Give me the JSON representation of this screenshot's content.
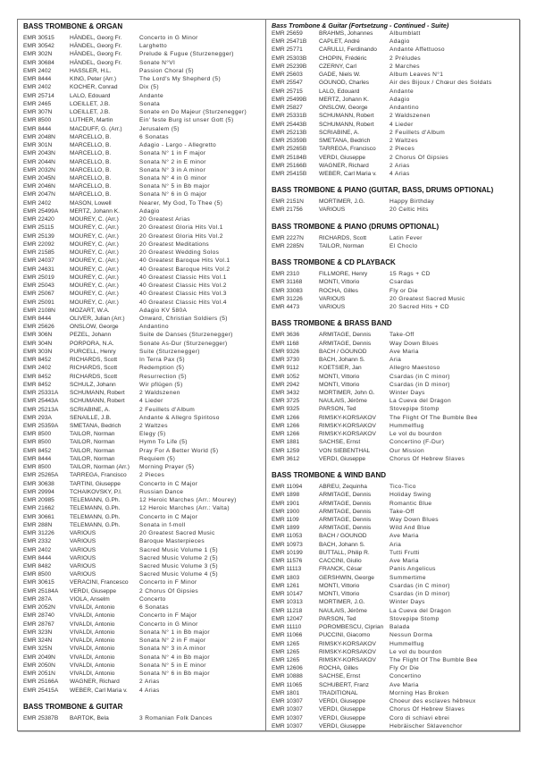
{
  "left": {
    "sections": [
      {
        "title": "BASS TROMBONE & ORGAN",
        "rows": [
          [
            "EMR 30515",
            "HÄNDEL, Georg Fr.",
            "Concerto in G Minor"
          ],
          [
            "EMR 30542",
            "HÄNDEL, Georg Fr.",
            "Larghetto"
          ],
          [
            "EMR 302N",
            "HÄNDEL, Georg Fr.",
            "Prelude & Fugue (Sturzenegger)"
          ],
          [
            "EMR 30684",
            "HÄNDEL, Georg Fr.",
            "Sonate N°VI"
          ],
          [
            "EMR 2402",
            "HASSLER, H.L.",
            "Passion Choral (5)"
          ],
          [
            "EMR 8444",
            "KING, Peter (Arr.)",
            "The Lord's My Shepherd (5)"
          ],
          [
            "EMR 2402",
            "KOCHER, Conrad",
            "Dix (5)"
          ],
          [
            "EMR 25714",
            "LALO, Edouard",
            "Andante"
          ],
          [
            "EMR 2465",
            "LOEILLET, J.B.",
            "Sonata"
          ],
          [
            "EMR 307N",
            "LOEILLET, J.B.",
            "Sonate en Do Majeur (Sturzenegger)"
          ],
          [
            "EMR 8500",
            "LUTHER, Martin",
            "Ein' feste Burg ist unser Gott (5)"
          ],
          [
            "EMR 8444",
            "MACDUFF, G. (Arr.)",
            "Jerusalem (5)"
          ],
          [
            "EMR 2048N",
            "MARCELLO, B.",
            "6 Sonatas"
          ],
          [
            "EMR 301N",
            "MARCELLO, B.",
            "Adagio - Largo - Allegretto"
          ],
          [
            "EMR 2043N",
            "MARCELLO, B.",
            "Sonata N° 1 in F major"
          ],
          [
            "EMR 2044N",
            "MARCELLO, B.",
            "Sonata N° 2 in E minor"
          ],
          [
            "EMR 2032N",
            "MARCELLO, B.",
            "Sonata N° 3 in A minor"
          ],
          [
            "EMR 2045N",
            "MARCELLO, B.",
            "Sonata N° 4 in G minor"
          ],
          [
            "EMR 2046N",
            "MARCELLO, B.",
            "Sonata N° 5 in Bb major"
          ],
          [
            "EMR 2047N",
            "MARCELLO, B.",
            "Sonata N° 6 in G major"
          ],
          [
            "EMR 2402",
            "MASON, Lowell",
            "Nearer, My God, To Thee (5)"
          ],
          [
            "EMR 25499A",
            "MERTZ, Johann K.",
            "Adagio"
          ],
          [
            "EMR 22420",
            "MOUREY, C. (Arr.)",
            "20 Greatest Arias"
          ],
          [
            "EMR 25115",
            "MOUREY, C. (Arr.)",
            "20 Greatest Gloria Hits Vol.1"
          ],
          [
            "EMR 25139",
            "MOUREY, C. (Arr.)",
            "20 Greatest Gloria Hits Vol.2"
          ],
          [
            "EMR 22092",
            "MOUREY, C. (Arr.)",
            "20 Greatest Meditations"
          ],
          [
            "EMR 21585",
            "MOUREY, C. (Arr.)",
            "20 Greatest Wedding Solos"
          ],
          [
            "EMR 24037",
            "MOUREY, C. (Arr.)",
            "40 Greatest Baroque Hits Vol.1"
          ],
          [
            "EMR 24631",
            "MOUREY, C. (Arr.)",
            "40 Greatest Baroque Hits Vol.2"
          ],
          [
            "EMR 25019",
            "MOUREY, C. (Arr.)",
            "40 Greatest Classic Hits Vol.1"
          ],
          [
            "EMR 25043",
            "MOUREY, C. (Arr.)",
            "40 Greatest Classic Hits Vol.2"
          ],
          [
            "EMR 25067",
            "MOUREY, C. (Arr.)",
            "40 Greatest Classic Hits Vol.3"
          ],
          [
            "EMR 25091",
            "MOUREY, C. (Arr.)",
            "40 Greatest Classic Hits Vol.4"
          ],
          [
            "EMR 2108N",
            "MOZART, W.A.",
            "Adagio KV 580A"
          ],
          [
            "EMR 8444",
            "OLIVER, Julian (Arr.)",
            "Onward, Christian Soldiers (5)"
          ],
          [
            "EMR 25626",
            "ONSLOW, George",
            "Andantino"
          ],
          [
            "EMR 306N",
            "PEZEL, Johann",
            "Suite de Danses (Sturzenegger)"
          ],
          [
            "EMR 304N",
            "PORPORA, N.A.",
            "Sonate As-Dur (Sturzenegger)"
          ],
          [
            "EMR 303N",
            "PURCELL, Henry",
            "Suite (Sturzenegger)"
          ],
          [
            "EMR 8452",
            "RICHARDS, Scott",
            "In Terra Pax (5)"
          ],
          [
            "EMR 2402",
            "RICHARDS, Scott",
            "Redemption (5)"
          ],
          [
            "EMR 8452",
            "RICHARDS, Scott",
            "Resurrection (5)"
          ],
          [
            "EMR 8452",
            "SCHULZ, Johann",
            "Wir pflügen (5)"
          ],
          [
            "EMR 25331A",
            "SCHUMANN, Robert",
            "2 Waldszenen"
          ],
          [
            "EMR 25443A",
            "SCHUMANN, Robert",
            "4 Lieder"
          ],
          [
            "EMR 25213A",
            "SCRIABINE, A.",
            "2 Feuillets d'Album"
          ],
          [
            "EMR 293A",
            "SENAILLE, J.B.",
            "Andante & Allegro Spiritoso"
          ],
          [
            "EMR 25359A",
            "SMETANA, Bedrich",
            "2 Waltzes"
          ],
          [
            "EMR 8500",
            "TAILOR, Norman",
            "Elegy (5)"
          ],
          [
            "EMR 8500",
            "TAILOR, Norman",
            "Hymn To Life (5)"
          ],
          [
            "EMR 8452",
            "TAILOR, Norman",
            "Pray For A Better World (5)"
          ],
          [
            "EMR 8444",
            "TAILOR, Norman",
            "Requiem (5)"
          ],
          [
            "EMR 8500",
            "TAILOR, Norman (Arr.)",
            "Morning Prayer (5)"
          ],
          [
            "EMR 25265A",
            "TARREGA, Francisco",
            "2 Pieces"
          ],
          [
            "EMR 30638",
            "TARTINI, Giuseppe",
            "Concerto in C Major"
          ],
          [
            "EMR 29994",
            "TCHAIKOVSKY, P.I.",
            "Russian Dance"
          ],
          [
            "EMR 20985",
            "TELEMANN, G.Ph.",
            "12 Heroic Marches (Arr.: Mourey)"
          ],
          [
            "EMR 21662",
            "TELEMANN, G.Ph.",
            "12 Heroic Marches (Arr.: Valta)"
          ],
          [
            "EMR 30661",
            "TELEMANN, G.Ph.",
            "Concerto in C Major"
          ],
          [
            "EMR 288N",
            "TELEMANN, G.Ph.",
            "Sonata in f-moll"
          ],
          [
            "EMR 31226",
            "VARIOUS",
            "20 Greatest Sacred Music"
          ],
          [
            "EMR 2332",
            "VARIOUS",
            "Baroque Masterpieces"
          ],
          [
            "EMR 2402",
            "VARIOUS",
            "Sacred Music Volume 1 (5)"
          ],
          [
            "EMR 8444",
            "VARIOUS",
            "Sacred Music Volume 2 (5)"
          ],
          [
            "EMR 8482",
            "VARIOUS",
            "Sacred Music Volume 3 (5)"
          ],
          [
            "EMR 8500",
            "VARIOUS",
            "Sacred Music Volume 4 (5)"
          ],
          [
            "EMR 30615",
            "VERACINI, Francesco",
            "Concerto in F Minor"
          ],
          [
            "EMR 25184A",
            "VERDI, Giuseppe",
            "2 Chorus Of Gipsies"
          ],
          [
            "EMR 287A",
            "VIOLA, Anselm",
            "Concerto"
          ],
          [
            "EMR 2052N",
            "VIVALDI, Antonio",
            "6 Sonatas"
          ],
          [
            "EMR 28740",
            "VIVALDI, Antonio",
            "Concerto in F Major"
          ],
          [
            "EMR 28767",
            "VIVALDI, Antonio",
            "Concerto in G Minor"
          ],
          [
            "EMR 323N",
            "VIVALDI, Antonio",
            "Sonata N° 1 in Bb major"
          ],
          [
            "EMR 324N",
            "VIVALDI, Antonio",
            "Sonata N° 2 in F major"
          ],
          [
            "EMR 325N",
            "VIVALDI, Antonio",
            "Sonata N° 3 in A minor"
          ],
          [
            "EMR 2049N",
            "VIVALDI, Antonio",
            "Sonata N° 4 in Bb major"
          ],
          [
            "EMR 2050N",
            "VIVALDI, Antonio",
            "Sonata N° 5 in E minor"
          ],
          [
            "EMR 2051N",
            "VIVALDI, Antonio",
            "Sonata N° 6 in Bb major"
          ],
          [
            "EMR 25166A",
            "WAGNER, Richard",
            "2 Arias"
          ],
          [
            "EMR 25415A",
            "WEBER, Carl Maria v.",
            "4 Arias"
          ]
        ]
      },
      {
        "title": "BASS TROMBONE & GUITAR",
        "rows": [
          [
            "EMR 25387B",
            "BARTOK, Bela",
            "3 Romanian Folk Dances"
          ]
        ]
      }
    ]
  },
  "right": {
    "sections": [
      {
        "title": "Bass Trombone & Guitar (Fortsetzung - Continued - Suite)",
        "continued": true,
        "rows": [
          [
            "EMR 25659",
            "BRAHMS, Johannes",
            "Albumblatt"
          ],
          [
            "EMR 25471B",
            "CAPLET, André",
            "Adagio"
          ],
          [
            "EMR 25771",
            "CARULLI, Ferdinando",
            "Andante Affettuoso"
          ],
          [
            "EMR 25303B",
            "CHOPIN, Frédéric",
            "2 Préludes"
          ],
          [
            "EMR 25239B",
            "CZERNY, Carl",
            "2 Marches"
          ],
          [
            "EMR 25603",
            "GADE, Niels W.",
            "Album Leaves N°1"
          ],
          [
            "EMR 25547",
            "GOUNOD, Charles",
            "Air des Bijoux / Chœur des Soldats"
          ],
          [
            "EMR 25715",
            "LALO, Edouard",
            "Andante"
          ],
          [
            "EMR 25499B",
            "MERTZ, Johann K.",
            "Adagio"
          ],
          [
            "EMR 25827",
            "ONSLOW, George",
            "Andantino"
          ],
          [
            "EMR 25331B",
            "SCHUMANN, Robert",
            "2 Waldszenen"
          ],
          [
            "EMR 25443B",
            "SCHUMANN, Robert",
            "4 Lieder"
          ],
          [
            "EMR 25213B",
            "SCRIABINE, A.",
            "2 Feuillets d'Album"
          ],
          [
            "EMR 25359B",
            "SMETANA, Bedrich",
            "2 Waltzes"
          ],
          [
            "EMR 25265B",
            "TARREGA, Francisco",
            "2 Pieces"
          ],
          [
            "EMR 25184B",
            "VERDI, Giuseppe",
            "2 Chorus Of Gipsies"
          ],
          [
            "EMR 25166B",
            "WAGNER, Richard",
            "2 Arias"
          ],
          [
            "EMR 25415B",
            "WEBER, Carl Maria v.",
            "4 Arias"
          ]
        ]
      },
      {
        "title": "BASS TROMBONE & PIANO (GUITAR, BASS, DRUMS OPTIONAL)",
        "rows": [
          [
            "EMR 2151N",
            "MORTIMER, J.G.",
            "Happy Birthday"
          ],
          [
            "EMR 21756",
            "VARIOUS",
            "20 Celtic Hits"
          ]
        ]
      },
      {
        "title": "BASS TROMBONE & PIANO (DRUMS OPTIONAL)",
        "rows": [
          [
            "EMR 2227N",
            "RICHARDS, Scott",
            "Latin Fever"
          ],
          [
            "EMR 2285N",
            "TAILOR, Norman",
            "El Choclo"
          ]
        ]
      },
      {
        "title": "BASS TROMBONE & CD PLAYBACK",
        "rows": [
          [
            "EMR 2310",
            "FILLMORE, Henry",
            "15 Rags + CD"
          ],
          [
            "EMR 31168",
            "MONTI, Vittorio",
            "Csardas"
          ],
          [
            "EMR 33083",
            "ROCHA, Gilles",
            "Fly or Die"
          ],
          [
            "EMR 31226",
            "VARIOUS",
            "20 Greatest Sacred Music"
          ],
          [
            "EMR 4473",
            "VARIOUS",
            "20 Sacred Hits + CD"
          ]
        ]
      },
      {
        "title": "BASS TROMBONE & BRASS BAND",
        "rows": [
          [
            "EMR 3636",
            "ARMITAGE, Dennis",
            "Take-Off"
          ],
          [
            "EMR 1168",
            "ARMITAGE, Dennis",
            "Way Down Blues"
          ],
          [
            "EMR 9326",
            "BACH / GOUNOD",
            "Ave Maria"
          ],
          [
            "EMR 3730",
            "BACH, Johann S.",
            "Aria"
          ],
          [
            "EMR 9112",
            "KOETSIER, Jan",
            "Allegro Maestoso"
          ],
          [
            "EMR 1052",
            "MONTI, Vittorio",
            "Csardas (in C minor)"
          ],
          [
            "EMR 2942",
            "MONTI, Vittorio",
            "Csardas (in D minor)"
          ],
          [
            "EMR 3432",
            "MORTIMER, John G.",
            "Winter Days"
          ],
          [
            "EMR 3725",
            "NAULAIS, Jérôme",
            "La Cueva del Dragon"
          ],
          [
            "EMR 9325",
            "PARSON, Ted",
            "Stovepipe Stomp"
          ],
          [
            "EMR 1266",
            "RIMSKY-KORSAKOV",
            "The Flight Of The Bumble Bee"
          ],
          [
            "EMR 1266",
            "RIMSKY-KORSAKOV",
            "Hummelflug"
          ],
          [
            "EMR 1266",
            "RIMSKY-KORSAKOV",
            "Le vol du bourdon"
          ],
          [
            "EMR 1881",
            "SACHSE, Ernst",
            "Concertino (F-Dur)"
          ],
          [
            "EMR 1259",
            "VON SIEBENTHAL",
            "Our Mission"
          ],
          [
            "EMR 3612",
            "VERDI, Giuseppe",
            "Chorus Of Hebrew Slaves"
          ]
        ]
      },
      {
        "title": "BASS TROMBONE & WIND BAND",
        "rows": [
          [
            "EMR 11094",
            "ABREU, Zequinha",
            "Tico-Tico"
          ],
          [
            "EMR 1898",
            "ARMITAGE, Dennis",
            "Holiday Swing"
          ],
          [
            "EMR 1901",
            "ARMITAGE, Dennis",
            "Romantic Blue"
          ],
          [
            "EMR 1900",
            "ARMITAGE, Dennis",
            "Take-Off"
          ],
          [
            "EMR 1109",
            "ARMITAGE, Dennis",
            "Way Down Blues"
          ],
          [
            "EMR 1899",
            "ARMITAGE, Dennis",
            "Wild And Blue"
          ],
          [
            "EMR 11053",
            "BACH / GOUNOD",
            "Ave Maria"
          ],
          [
            "EMR 10973",
            "BACH, Johann S.",
            "Aria"
          ],
          [
            "EMR 10199",
            "BUTTALL, Philip R.",
            "Tutti Frutti"
          ],
          [
            "EMR 11576",
            "CACCINI, Giulio",
            "Ave Maria"
          ],
          [
            "EMR 11113",
            "FRANCK, César",
            "Panis Angelicus"
          ],
          [
            "EMR 1803",
            "GERSHWIN, George",
            "Summertime"
          ],
          [
            "EMR 1261",
            "MONTI, Vittorio",
            "Csardas (in C minor)"
          ],
          [
            "EMR 10147",
            "MONTI, Vittorio",
            "Csardas (in D minor)"
          ],
          [
            "EMR 10313",
            "MORTIMER, J.G.",
            "Winter Days"
          ],
          [
            "EMR 11218",
            "NAULAIS, Jérôme",
            "La Cueva del Dragon"
          ],
          [
            "EMR 12047",
            "PARSON, Ted",
            "Stovepipe Stomp"
          ],
          [
            "EMR 11110",
            "POROMBESCU, Ciprian",
            "Balada"
          ],
          [
            "EMR 11066",
            "PUCCINI, Giacomo",
            "Nessun Dorma"
          ],
          [
            "EMR 1265",
            "RIMSKY-KORSAKOV",
            "Hummelflug"
          ],
          [
            "EMR 1265",
            "RIMSKY-KORSAKOV",
            "Le vol du bourdon"
          ],
          [
            "EMR 1265",
            "RIMSKY-KORSAKOV",
            "The Flight Of The Bumble Bee"
          ],
          [
            "EMR 12606",
            "ROCHA, Gilles",
            "Fly Or Die"
          ],
          [
            "EMR 10888",
            "SACHSE, Ernst",
            "Concertino"
          ],
          [
            "EMR 11065",
            "SCHUBERT, Franz",
            "Ave Maria"
          ],
          [
            "EMR 1801",
            "TRADITIONAL",
            "Morning Has Broken"
          ],
          [
            "EMR 10307",
            "VERDI, Giuseppe",
            "Choeur des esclaves hébreux"
          ],
          [
            "EMR 10307",
            "VERDI, Giuseppe",
            "Chorus Of Hebrew Slaves"
          ],
          [
            "EMR 10307",
            "VERDI, Giuseppe",
            "Coro di schiavi ebrei"
          ],
          [
            "EMR 10307",
            "VERDI, Giuseppe",
            "Hebräischer Sklavenchor"
          ]
        ]
      }
    ]
  }
}
